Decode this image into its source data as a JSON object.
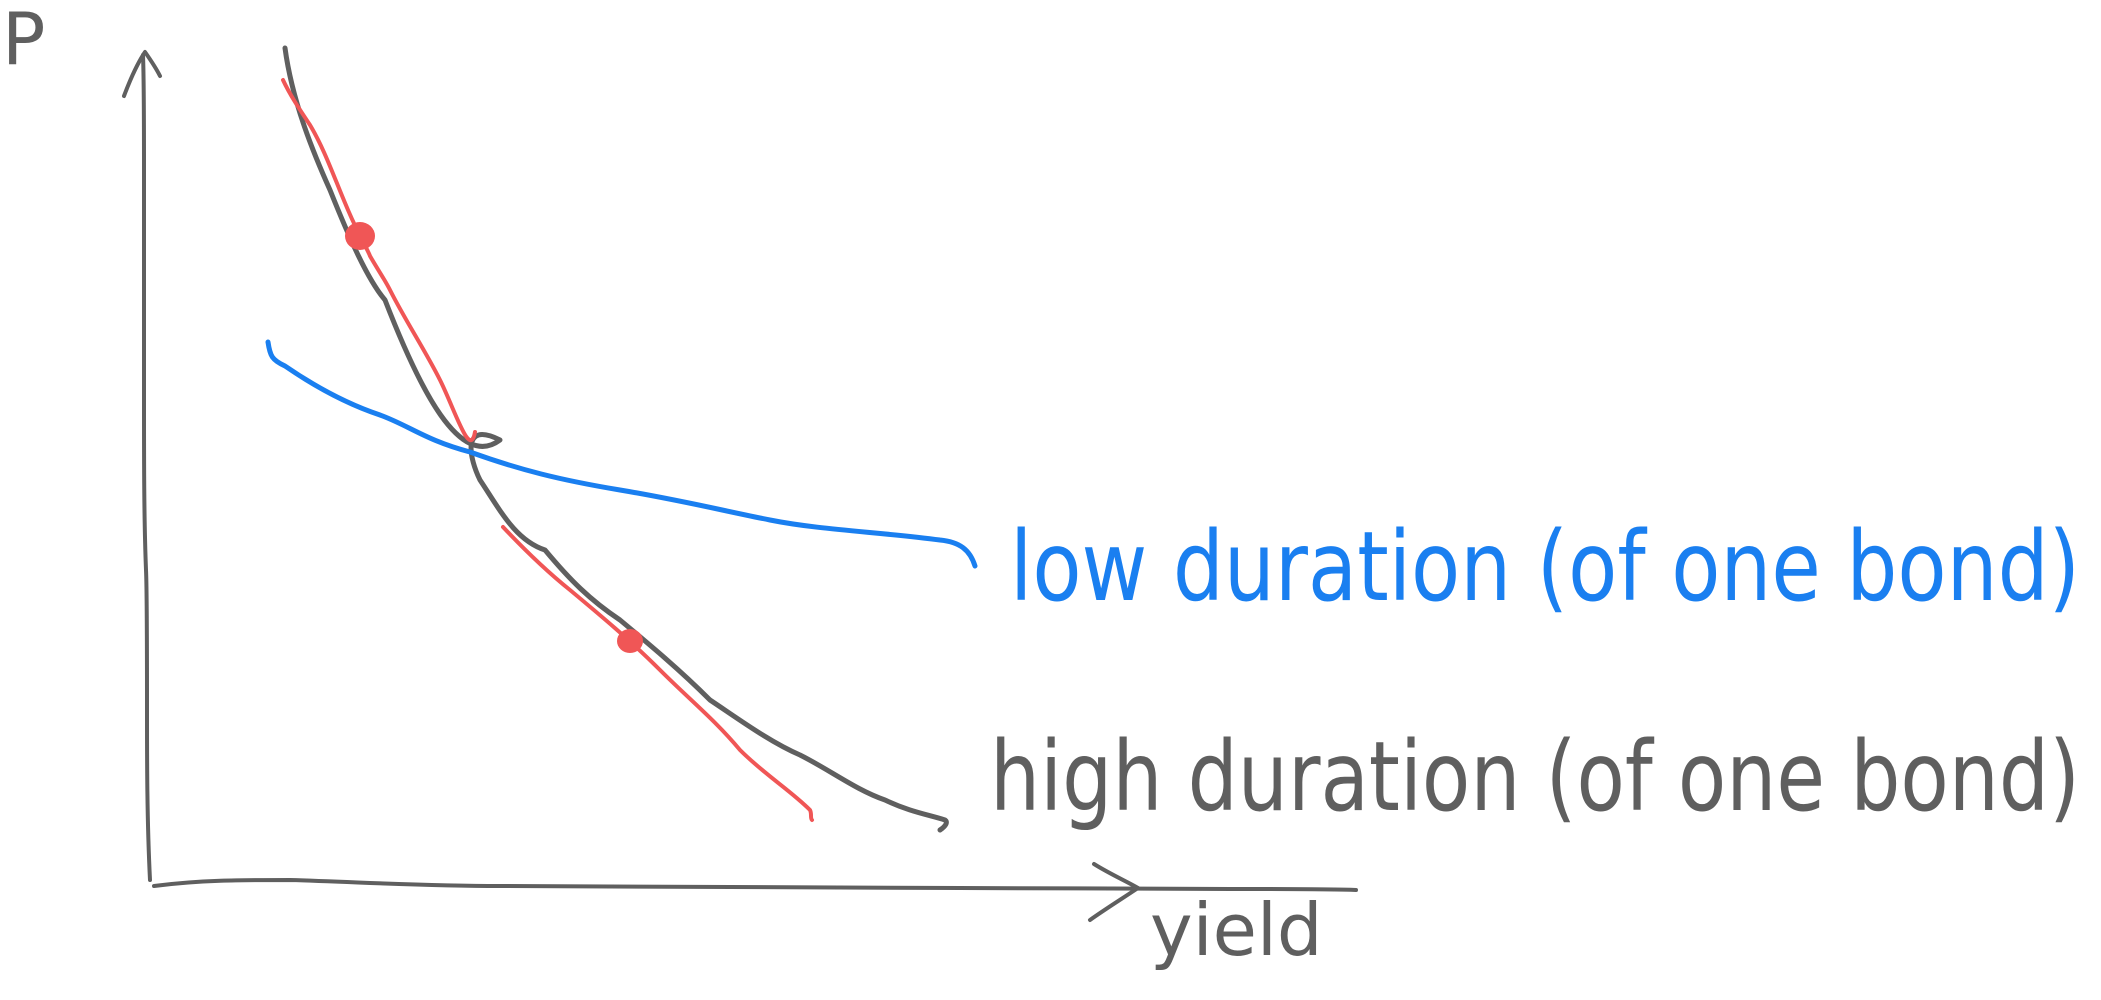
{
  "axes": {
    "y_label": "P",
    "x_label": "yield"
  },
  "curves": {
    "low_duration": {
      "label": "low duration (of one bond)",
      "color": "#1a7ff0"
    },
    "high_duration": {
      "label": "high duration (of one bond)",
      "color": "#5f5f5f"
    },
    "tangent_color": "#f05656"
  },
  "colors": {
    "axis": "#5f5f5f",
    "background": "#ffffff"
  }
}
